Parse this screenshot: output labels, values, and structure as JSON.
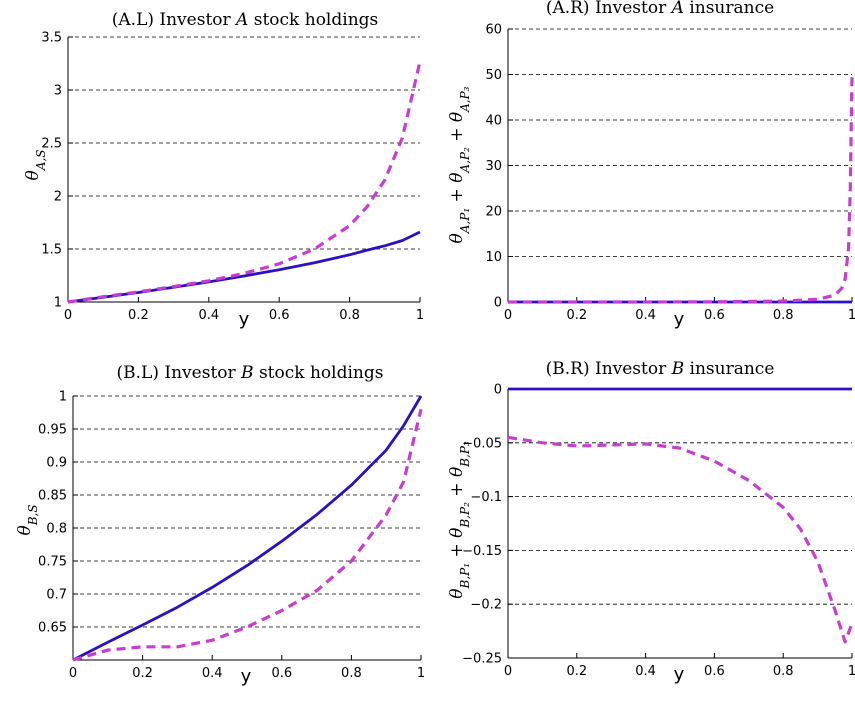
{
  "colors": {
    "solid": "#2a10c8",
    "dashed": "#c83cd2"
  },
  "chart_data": [
    {
      "type": "line",
      "title": "(A.L) Investor A stock holdings",
      "xlabel": "y",
      "ylabel": "θ_{A,S}",
      "xlim": [
        0,
        1
      ],
      "ylim": [
        1,
        3.5
      ],
      "xticks": [
        0,
        0.2,
        0.4,
        0.6,
        0.8,
        1
      ],
      "xtick_labels": [
        "0",
        "0.2",
        "0.4",
        "0.6",
        "0.8",
        "1"
      ],
      "yticks": [
        1,
        1.5,
        2,
        2.5,
        3,
        3.5
      ],
      "ytick_labels": [
        "1",
        "1.5",
        "2",
        "2.5",
        "3",
        "3.5"
      ],
      "grid": "horizontal dashed",
      "x": [
        0,
        0.1,
        0.2,
        0.3,
        0.4,
        0.5,
        0.6,
        0.7,
        0.8,
        0.85,
        0.9,
        0.95,
        1.0
      ],
      "series": [
        {
          "style": "solid",
          "values": [
            1.0,
            1.045,
            1.09,
            1.14,
            1.19,
            1.245,
            1.305,
            1.37,
            1.445,
            1.49,
            1.53,
            1.58,
            1.66
          ]
        },
        {
          "style": "dashed",
          "values": [
            1.0,
            1.05,
            1.095,
            1.145,
            1.2,
            1.27,
            1.36,
            1.5,
            1.72,
            1.9,
            2.15,
            2.55,
            3.27
          ]
        }
      ]
    },
    {
      "type": "line",
      "title": "(A.R) Investor A insurance",
      "xlabel": "y",
      "ylabel": "θ_{A,P1} + θ_{A,P2} + θ_{A,P3}",
      "xlim": [
        0,
        1
      ],
      "ylim": [
        0,
        60
      ],
      "xticks": [
        0,
        0.2,
        0.4,
        0.6,
        0.8,
        1
      ],
      "xtick_labels": [
        "0",
        "0.2",
        "0.4",
        "0.6",
        "0.8",
        "1"
      ],
      "yticks": [
        0,
        10,
        20,
        30,
        40,
        50,
        60
      ],
      "ytick_labels": [
        "0",
        "10",
        "20",
        "30",
        "40",
        "50",
        "60"
      ],
      "grid": "horizontal dashed",
      "x": [
        0,
        0.2,
        0.4,
        0.6,
        0.8,
        0.9,
        0.95,
        0.97,
        0.98,
        0.99,
        0.995,
        1.0
      ],
      "series": [
        {
          "style": "solid",
          "values": [
            0,
            0,
            0,
            0,
            0,
            0,
            0,
            0,
            0,
            0,
            0,
            0
          ]
        },
        {
          "style": "dashed",
          "values": [
            0,
            0,
            0,
            0.05,
            0.2,
            0.6,
            1.5,
            3.0,
            5.0,
            12.0,
            25.0,
            50.0
          ]
        }
      ]
    },
    {
      "type": "line",
      "title": "(B.L) Investor B stock holdings",
      "xlabel": "y",
      "ylabel": "θ_{B,S}",
      "xlim": [
        0,
        1
      ],
      "ylim": [
        0.6,
        1
      ],
      "xticks": [
        0,
        0.2,
        0.4,
        0.6,
        0.8,
        1
      ],
      "xtick_labels": [
        "0",
        "0.2",
        "0.4",
        "0.6",
        "0.8",
        "1"
      ],
      "yticks": [
        0.65,
        0.7,
        0.75,
        0.8,
        0.85,
        0.9,
        0.95,
        1
      ],
      "ytick_labels": [
        "0.65",
        "0.7",
        "0.75",
        "0.8",
        "0.85",
        "0.9",
        "0.95",
        "1"
      ],
      "grid": "horizontal dashed",
      "x": [
        0,
        0.1,
        0.2,
        0.3,
        0.4,
        0.5,
        0.6,
        0.7,
        0.8,
        0.9,
        0.95,
        1.0
      ],
      "series": [
        {
          "style": "solid",
          "values": [
            0.6,
            0.627,
            0.653,
            0.68,
            0.71,
            0.743,
            0.78,
            0.82,
            0.865,
            0.918,
            0.955,
            1.0
          ]
        },
        {
          "style": "dashed",
          "values": [
            0.6,
            0.615,
            0.62,
            0.62,
            0.63,
            0.65,
            0.675,
            0.705,
            0.75,
            0.82,
            0.87,
            0.98
          ]
        }
      ]
    },
    {
      "type": "line",
      "title": "(B.R) Investor B insurance",
      "xlabel": "y",
      "ylabel": "θ_{B,P1} + θ_{B,P2} + θ_{B,P3}",
      "xlim": [
        0,
        1
      ],
      "ylim": [
        -0.25,
        0
      ],
      "xticks": [
        0,
        0.2,
        0.4,
        0.6,
        0.8,
        1
      ],
      "xtick_labels": [
        "0",
        "0.2",
        "0.4",
        "0.6",
        "0.8",
        "1"
      ],
      "yticks": [
        -0.25,
        -0.2,
        -0.15,
        -0.1,
        -0.05,
        0
      ],
      "ytick_labels": [
        "−0.25",
        "−0.2",
        "−0.15",
        "−0.1",
        "−0.05",
        "0"
      ],
      "grid": "horizontal dashed",
      "x": [
        0,
        0.1,
        0.2,
        0.3,
        0.4,
        0.5,
        0.6,
        0.7,
        0.8,
        0.85,
        0.9,
        0.95,
        0.98,
        1.0
      ],
      "series": [
        {
          "style": "solid",
          "values": [
            0,
            0,
            0,
            0,
            0,
            0,
            0,
            0,
            0,
            0,
            0,
            0,
            0,
            0
          ]
        },
        {
          "style": "dashed",
          "values": [
            -0.045,
            -0.05,
            -0.053,
            -0.052,
            -0.051,
            -0.055,
            -0.067,
            -0.085,
            -0.11,
            -0.13,
            -0.16,
            -0.205,
            -0.235,
            -0.218
          ]
        }
      ]
    }
  ]
}
